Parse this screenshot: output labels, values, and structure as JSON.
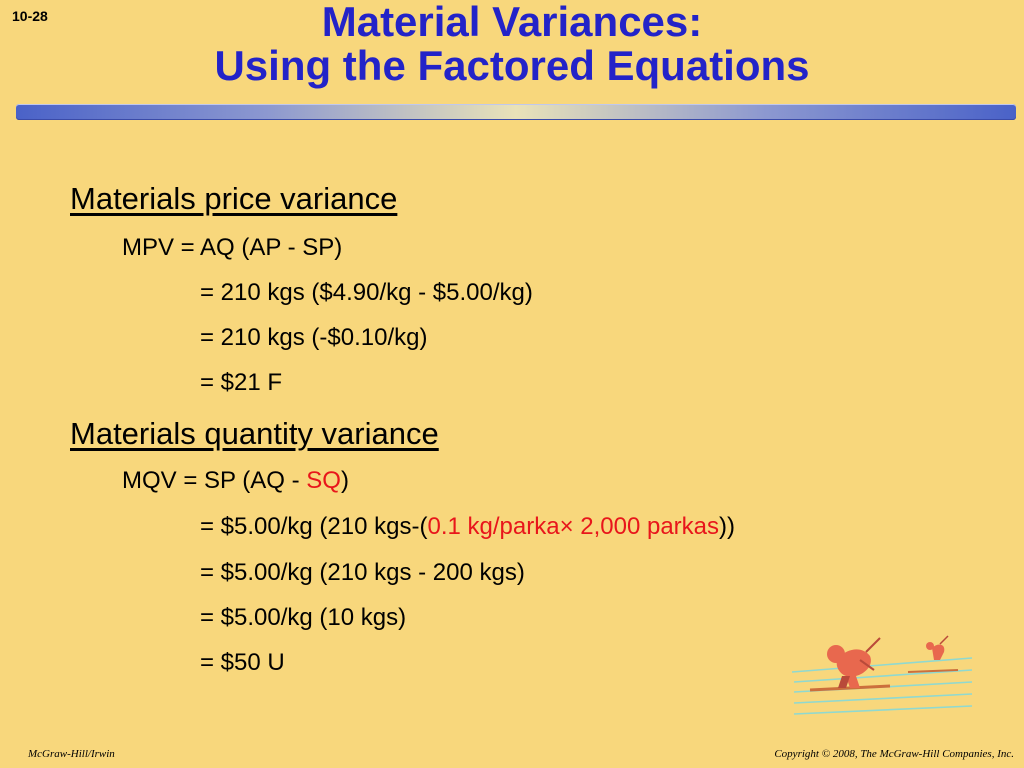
{
  "slide": {
    "number": "10-28",
    "title_line1": "Material Variances:",
    "title_line2": "Using the Factored Equations"
  },
  "price_section": {
    "heading": "Materials price variance",
    "formula": "MPV = AQ (AP - SP)",
    "step1": "= 210 kgs ($4.90/kg - $5.00/kg)",
    "step2": "= 210 kgs (-$0.10/kg)",
    "step3": "= $21 F"
  },
  "quantity_section": {
    "heading": "Materials quantity variance",
    "formula_prefix": "MQV = SP (AQ - ",
    "formula_highlight": "SQ",
    "formula_suffix": ")",
    "step1_prefix": "= $5.00/kg (210 kgs-(",
    "step1_highlight_a": "0.1 kg/parka",
    "step1_times": "×",
    "step1_highlight_b": " 2,000 parkas",
    "step1_suffix": "))",
    "step2": "= $5.00/kg (210 kgs - 200 kgs)",
    "step3": "= $5.00/kg (10 kgs)",
    "step4": "= $50 U"
  },
  "footer": {
    "publisher": "McGraw-Hill/Irwin",
    "copyright": "Copyright © 2008, The McGraw-Hill Companies, Inc."
  },
  "colors": {
    "background": "#f8d77c",
    "title": "#2323c8",
    "highlight": "#e8161b"
  },
  "decoration": {
    "icon": "skier-illustration"
  }
}
